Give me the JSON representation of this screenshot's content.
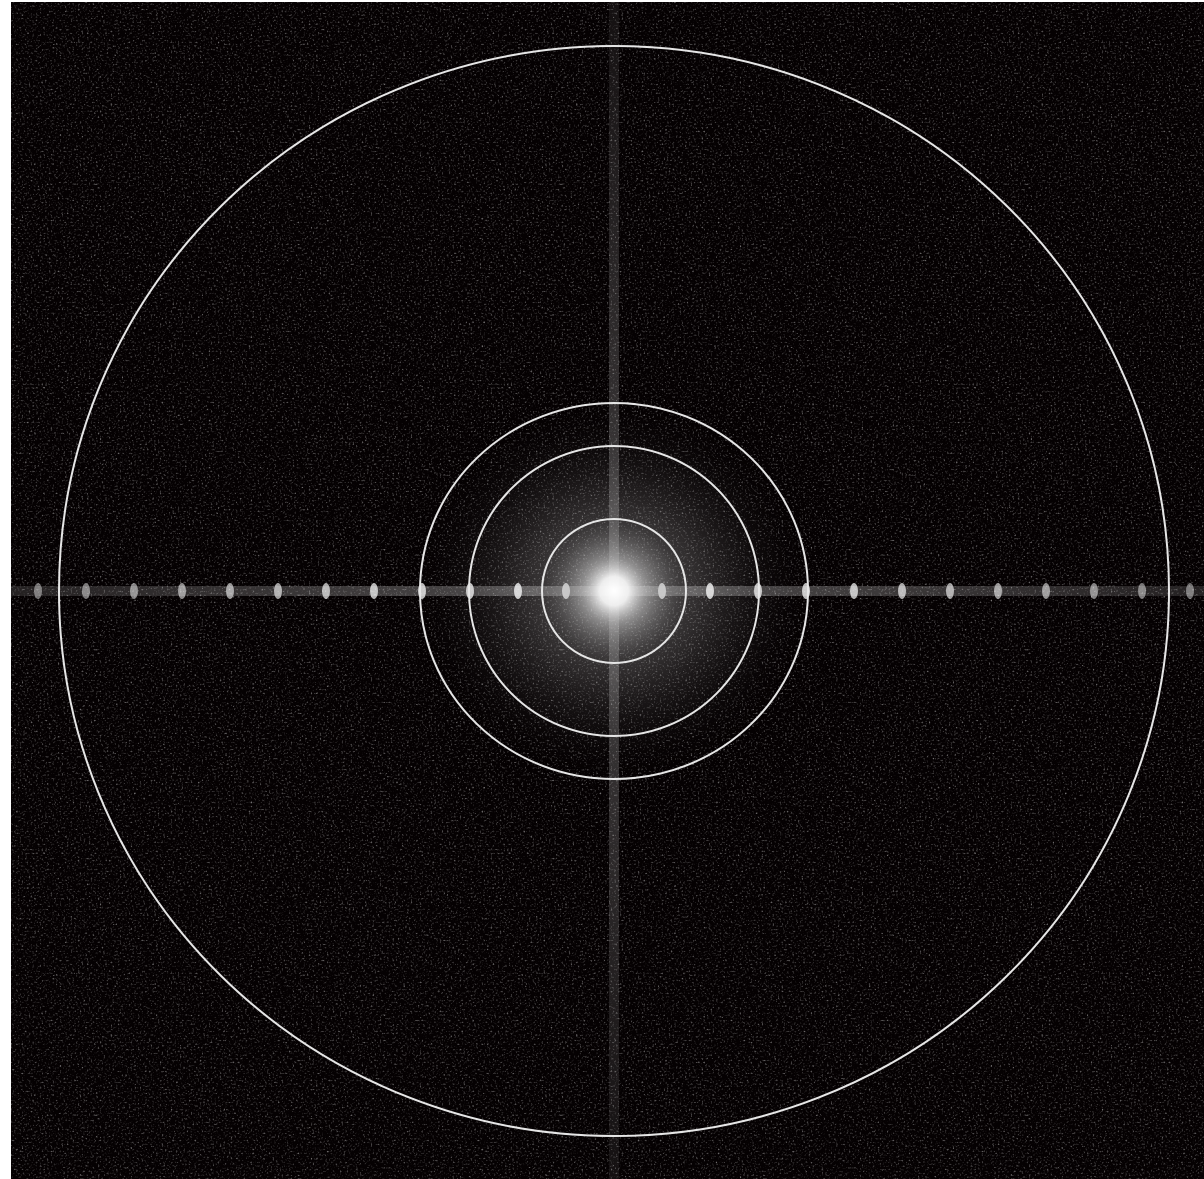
{
  "image": {
    "kind": "fourier-magnitude-spectrum",
    "background_color": "#050102",
    "ring_color": "#e6e6e6",
    "rings": [
      {
        "name": "ring-1",
        "level": 1
      },
      {
        "name": "ring-2",
        "level": 2
      },
      {
        "name": "ring-3",
        "level": 3
      },
      {
        "name": "ring-4",
        "level": 4
      }
    ]
  }
}
